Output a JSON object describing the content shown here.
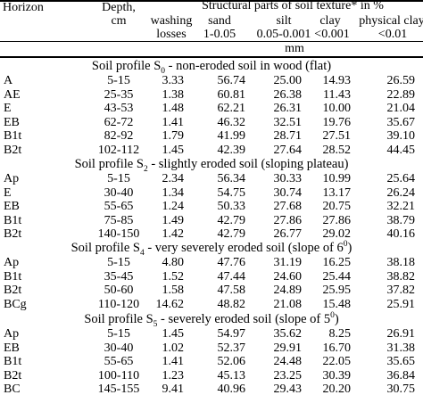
{
  "header": {
    "horizon": "Horizon",
    "depth": "Depth,",
    "depth_unit": "cm",
    "structural": "Structural parts of soil texture* in %",
    "washing": "washing",
    "losses": "losses",
    "sand": "sand",
    "sand_range": "1-0.05",
    "silt": "silt",
    "silt_range": "0.05-0.001",
    "clay": "clay",
    "clay_range": "<0.001",
    "physical_clay": "physical clay",
    "physical_clay_range": "<0.01",
    "mm": "mm"
  },
  "sections": [
    {
      "pre": "Soil profile S",
      "sub": "0",
      "mid": " - non-eroded soil in wood (flat)",
      "sup": "",
      "post": "",
      "rows": [
        [
          "A",
          "5-15",
          "3.33",
          "56.74",
          "25.00",
          "14.93",
          "26.59"
        ],
        [
          "AE",
          "25-35",
          "1.38",
          "60.81",
          "26.38",
          "11.43",
          "22.89"
        ],
        [
          "E",
          "43-53",
          "1.48",
          "62.21",
          "26.31",
          "10.00",
          "21.04"
        ],
        [
          "EB",
          "62-72",
          "1.41",
          "46.32",
          "32.51",
          "19.76",
          "35.67"
        ],
        [
          "B1t",
          "82-92",
          "1.79",
          "41.99",
          "28.71",
          "27.51",
          "39.10"
        ],
        [
          "B2t",
          "102-112",
          "1.45",
          "42.39",
          "27.64",
          "28.52",
          "44.45"
        ]
      ]
    },
    {
      "pre": "Soil profile S",
      "sub": "2",
      "mid": " - slightly eroded soil (sloping plateau)",
      "sup": "",
      "post": "",
      "rows": [
        [
          "Ap",
          "5-15",
          "2.34",
          "56.34",
          "30.33",
          "10.99",
          "25.64"
        ],
        [
          "E",
          "30-40",
          "1.34",
          "54.75",
          "30.74",
          "13.17",
          "26.24"
        ],
        [
          "EB",
          "55-65",
          "1.24",
          "50.33",
          "27.68",
          "20.75",
          "32.21"
        ],
        [
          "B1t",
          "75-85",
          "1.49",
          "42.79",
          "27.86",
          "27.86",
          "38.79"
        ],
        [
          "B2t",
          "140-150",
          "1.42",
          "42.79",
          "26.77",
          "29.02",
          "40.16"
        ]
      ]
    },
    {
      "pre": "Soil profile S",
      "sub": "4",
      "mid": " - very severely eroded soil (slope of 6",
      "sup": "0",
      "post": ")",
      "rows": [
        [
          "Ap",
          "5-15",
          "4.80",
          "47.76",
          "31.19",
          "16.25",
          "38.18"
        ],
        [
          "B1t",
          "35-45",
          "1.52",
          "47.44",
          "24.60",
          "25.44",
          "38.82"
        ],
        [
          "B2t",
          "50-60",
          "1.58",
          "47.58",
          "24.89",
          "25.95",
          "37.82"
        ],
        [
          "BCg",
          "110-120",
          "14.62",
          "48.82",
          "21.08",
          "15.48",
          "25.91"
        ]
      ]
    },
    {
      "pre": "Soil profile S",
      "sub": "5",
      "mid": " - severely eroded soil (slope of 5",
      "sup": "0",
      "post": ")",
      "rows": [
        [
          "Ap",
          "5-15",
          "1.45",
          "54.97",
          "35.62",
          "8.25",
          "26.91"
        ],
        [
          "EB",
          "30-40",
          "1.02",
          "52.37",
          "29.91",
          "16.70",
          "31.38"
        ],
        [
          "B1t",
          "55-65",
          "1.41",
          "52.06",
          "24.48",
          "22.05",
          "35.65"
        ],
        [
          "B2t",
          "100-110",
          "1.23",
          "45.13",
          "23.25",
          "30.39",
          "36.84"
        ],
        [
          "BC",
          "145-155",
          "9.41",
          "40.96",
          "29.43",
          "20.20",
          "30.75"
        ]
      ]
    }
  ]
}
